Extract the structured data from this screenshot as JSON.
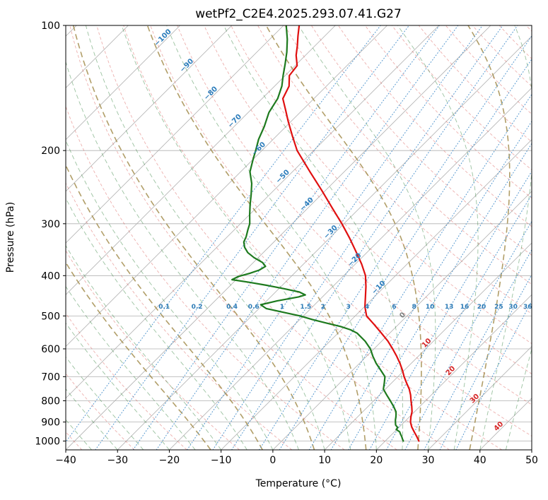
{
  "chart_data": {
    "type": "line",
    "variant": "skew-t-log-p-sounding",
    "title": "wetPf2_C2E4.2025.293.07.41.G27",
    "xlabel": "Temperature (°C)",
    "ylabel": "Pressure (hPa)",
    "xlim": [
      -40,
      50
    ],
    "p_top": 100,
    "p_bottom": 1050,
    "skew_deg": 45,
    "grid": true,
    "x_ticks": [
      -40,
      -30,
      -20,
      -10,
      0,
      10,
      20,
      30,
      40,
      50
    ],
    "y_ticks": [
      100,
      200,
      300,
      400,
      500,
      600,
      700,
      800,
      900,
      1000
    ],
    "colors": {
      "grid": "#b0b0b0",
      "axis": "#000000",
      "temperature": "#e01010",
      "dewpoint": "#1e7a1e"
    },
    "isotherms": {
      "start": -120,
      "end": 50,
      "step": 10,
      "color": "#b0b0b0"
    },
    "isotherm_labels": {
      "values": [
        -100,
        -90,
        -80,
        -70,
        -60,
        -50,
        -40,
        -30,
        -20,
        -10,
        0,
        10,
        20,
        30,
        40
      ],
      "neg_color": "#2e7ebc",
      "zero_color": "#808080",
      "pos_color": "#d62728"
    },
    "dry_adiabats": {
      "theta_start_k": 233,
      "theta_end_k": 473,
      "step_k": 10,
      "color": "rgba(214,80,75,0.45)"
    },
    "moist_adiabats": {
      "t_start": -40,
      "t_end": 45,
      "step": 5,
      "color": "rgba(34,120,44,0.45)"
    },
    "moist_adiabats_major": {
      "starts": [
        -12,
        -2,
        8,
        18,
        28,
        38
      ],
      "color": "rgba(158,134,66,0.8)"
    },
    "mixing_ratio": {
      "values": [
        0.1,
        0.2,
        0.4,
        0.6,
        1,
        1.5,
        2,
        3,
        4,
        6,
        8,
        10,
        13,
        16,
        20,
        25,
        30,
        36
      ],
      "color": "#4f94cd",
      "label_color": "#2d7bb6"
    },
    "series": [
      {
        "name": "temperature",
        "color": "#e01010",
        "width": 2.2,
        "points": [
          [
            1000,
            26.5
          ],
          [
            975,
            25.2
          ],
          [
            950,
            23.8
          ],
          [
            925,
            22.4
          ],
          [
            900,
            21.2
          ],
          [
            875,
            20.3
          ],
          [
            850,
            19.5
          ],
          [
            825,
            18.4
          ],
          [
            800,
            17.2
          ],
          [
            775,
            16.0
          ],
          [
            750,
            14.6
          ],
          [
            725,
            12.9
          ],
          [
            700,
            11.2
          ],
          [
            675,
            9.6
          ],
          [
            650,
            7.8
          ],
          [
            625,
            5.8
          ],
          [
            600,
            3.6
          ],
          [
            575,
            1.2
          ],
          [
            550,
            -1.6
          ],
          [
            525,
            -4.6
          ],
          [
            500,
            -7.8
          ],
          [
            475,
            -9.9
          ],
          [
            450,
            -11.7
          ],
          [
            425,
            -13.6
          ],
          [
            400,
            -15.8
          ],
          [
            375,
            -18.8
          ],
          [
            350,
            -22.3
          ],
          [
            325,
            -26.1
          ],
          [
            300,
            -30.4
          ],
          [
            275,
            -35.3
          ],
          [
            250,
            -40.6
          ],
          [
            225,
            -46.6
          ],
          [
            200,
            -53.2
          ],
          [
            185,
            -56.8
          ],
          [
            170,
            -60.6
          ],
          [
            160,
            -63.2
          ],
          [
            150,
            -66.0
          ],
          [
            140,
            -67.2
          ],
          [
            132,
            -69.2
          ],
          [
            125,
            -69.6
          ],
          [
            118,
            -71.8
          ],
          [
            112,
            -73.4
          ],
          [
            106,
            -75.2
          ],
          [
            100,
            -77.0
          ]
        ]
      },
      {
        "name": "dewpoint",
        "color": "#1e7a1e",
        "width": 2.2,
        "points": [
          [
            1000,
            23.5
          ],
          [
            988,
            22.9
          ],
          [
            975,
            22.3
          ],
          [
            962,
            21.6
          ],
          [
            950,
            21.0
          ],
          [
            938,
            19.9
          ],
          [
            928,
            19.8
          ],
          [
            915,
            18.9
          ],
          [
            905,
            18.5
          ],
          [
            890,
            17.9
          ],
          [
            875,
            17.4
          ],
          [
            862,
            16.9
          ],
          [
            850,
            16.4
          ],
          [
            825,
            14.9
          ],
          [
            800,
            13.2
          ],
          [
            775,
            11.4
          ],
          [
            750,
            9.6
          ],
          [
            725,
            8.6
          ],
          [
            700,
            7.5
          ],
          [
            675,
            5.4
          ],
          [
            650,
            3.2
          ],
          [
            625,
            1.2
          ],
          [
            600,
            -0.7
          ],
          [
            575,
            -3.2
          ],
          [
            550,
            -6.3
          ],
          [
            540,
            -8.2
          ],
          [
            530,
            -10.8
          ],
          [
            520,
            -14.2
          ],
          [
            510,
            -17.6
          ],
          [
            500,
            -20.6
          ],
          [
            490,
            -24.6
          ],
          [
            480,
            -28.6
          ],
          [
            470,
            -30.4
          ],
          [
            460,
            -28.0
          ],
          [
            450,
            -24.6
          ],
          [
            445,
            -23.7
          ],
          [
            438,
            -25.4
          ],
          [
            430,
            -29.0
          ],
          [
            422,
            -33.0
          ],
          [
            415,
            -37.0
          ],
          [
            409,
            -40.8
          ],
          [
            402,
            -40.2
          ],
          [
            395,
            -38.6
          ],
          [
            388,
            -37.4
          ],
          [
            380,
            -36.9
          ],
          [
            372,
            -38.2
          ],
          [
            362,
            -40.8
          ],
          [
            352,
            -43.0
          ],
          [
            342,
            -44.6
          ],
          [
            332,
            -45.8
          ],
          [
            322,
            -46.4
          ],
          [
            310,
            -47.4
          ],
          [
            300,
            -48.2
          ],
          [
            285,
            -50.0
          ],
          [
            270,
            -51.8
          ],
          [
            255,
            -53.6
          ],
          [
            240,
            -55.6
          ],
          [
            225,
            -58.2
          ],
          [
            210,
            -60.0
          ],
          [
            200,
            -61.2
          ],
          [
            188,
            -62.8
          ],
          [
            175,
            -64.2
          ],
          [
            162,
            -66.0
          ],
          [
            150,
            -67.0
          ],
          [
            140,
            -68.6
          ],
          [
            132,
            -70.4
          ],
          [
            124,
            -72.2
          ],
          [
            116,
            -74.2
          ],
          [
            108,
            -76.6
          ],
          [
            100,
            -79.5
          ]
        ]
      }
    ]
  }
}
